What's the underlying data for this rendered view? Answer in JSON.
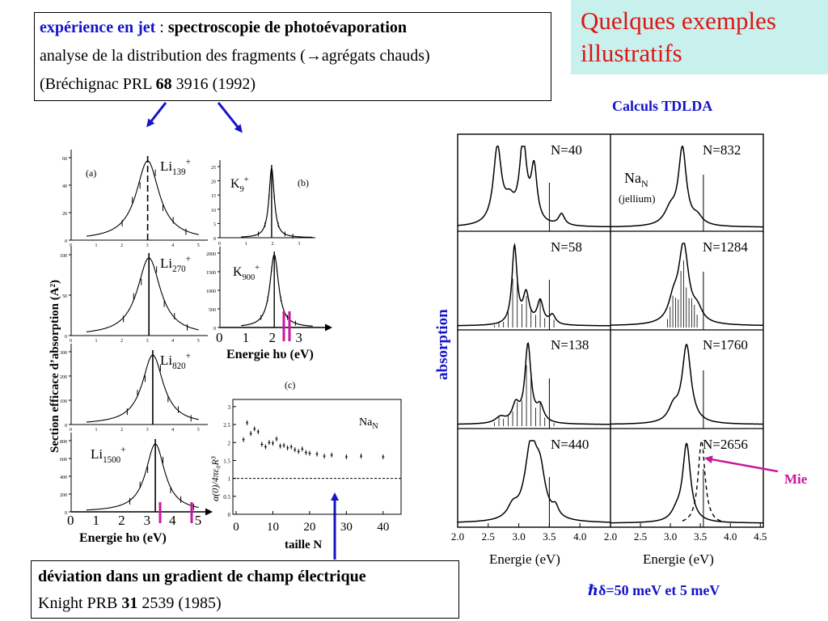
{
  "slide_title": {
    "line1": "Quelques exemples",
    "line2": "illustratifs"
  },
  "top_box": {
    "exp_label": "expérience en jet",
    "colon": " : ",
    "exp_title": "spectroscopie de photoévaporation",
    "line2_prefix": "analyse de la distribution des fragments (",
    "line2_arrow": "→",
    "line2_suffix": "agrégats chauds)",
    "ref_prefix": "(Bréchignac PRL ",
    "ref_vol": "68",
    "ref_suffix": " 3916 (1992)"
  },
  "bottom_box": {
    "title": "déviation dans un gradient de champ électrique",
    "ref_prefix": "Knight PRB ",
    "ref_vol": "31",
    "ref_suffix": " 2539 (1985)"
  },
  "panel_a": {
    "tag": "(a)",
    "ylabel": "Section efficace d’absorption (A²)",
    "xlabel": "Energie hυ (eV)",
    "xticks": [
      "0",
      "1",
      "2",
      "3",
      "4",
      "5"
    ],
    "species": [
      {
        "base": "Li",
        "sub": "139",
        "sup": "+",
        "yticks": [
          "60",
          "40",
          "20",
          "0"
        ]
      },
      {
        "base": "Li",
        "sub": "270",
        "sup": "+",
        "yticks": [
          "100",
          "50",
          "0"
        ]
      },
      {
        "base": "Li",
        "sub": "820",
        "sup": "+",
        "yticks": [
          "300",
          "200",
          "100",
          "0"
        ]
      },
      {
        "base": "Li",
        "sub": "1500",
        "sup": "+",
        "yticks": [
          "800",
          "600",
          "400",
          "200",
          "0"
        ]
      }
    ]
  },
  "panel_b": {
    "tag": "(b)",
    "xlabel": "Energie hυ (eV)",
    "xticks": [
      "0",
      "1",
      "2",
      "3"
    ],
    "species": [
      {
        "base": "K",
        "sub": "9",
        "sup": "+",
        "yticks": [
          "25",
          "20",
          "15",
          "10",
          "5",
          "0"
        ]
      },
      {
        "base": "K",
        "sub": "900",
        "sup": "+",
        "yticks": [
          "2000",
          "1500",
          "1000",
          "500",
          "0"
        ]
      }
    ]
  },
  "panel_c": {
    "tag": "(c)",
    "ylabel": "α(0)/4πε₀R³",
    "xlabel": "taille N",
    "species": "Na",
    "species_sub": "N",
    "xticks": [
      "0",
      "10",
      "20",
      "30",
      "40"
    ],
    "yticks": [
      "3",
      "2.5",
      "2",
      "1.5",
      "1",
      "0.5",
      "0"
    ]
  },
  "tdlda": {
    "title": "Calculs TDLDA",
    "ylabel": "absorption",
    "xlabel": "Energie (eV)",
    "xticks": [
      "2.0",
      "2.5",
      "3.0",
      "3.5",
      "4.0",
      "2.0",
      "2.5",
      "3.0",
      "3.5",
      "4.0",
      "4.5"
    ],
    "left_labels": [
      "N=40",
      "N=58",
      "N=138",
      "N=440"
    ],
    "right_labels": [
      "N=832",
      "N=1284",
      "N=1760",
      "N=2656"
    ],
    "na_label": "Na",
    "na_sub": "N",
    "jellium": "(jellium)",
    "mie": "Mie",
    "hbar_note": "ℏδ=50 meV et 5 meV"
  }
}
